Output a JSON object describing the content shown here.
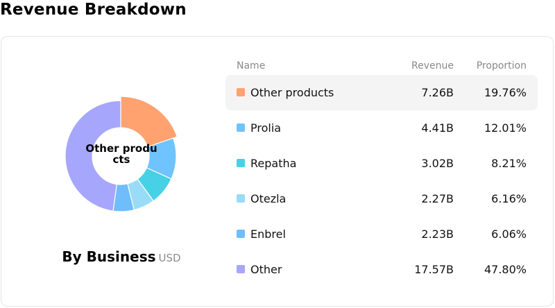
{
  "header": {
    "title": "Revenue Breakdown"
  },
  "donut": {
    "center_label": "Other products",
    "caption": "By Business",
    "unit": "USD"
  },
  "table": {
    "columns": {
      "name": "Name",
      "revenue": "Revenue",
      "proportion": "Proportion"
    }
  },
  "chart_data": {
    "type": "pie",
    "categories": [
      "Other products",
      "Prolia",
      "Repatha",
      "Otezla",
      "Enbrel",
      "Other"
    ],
    "values": [
      7.26,
      4.41,
      3.02,
      2.27,
      2.23,
      17.57
    ],
    "revenue_labels": [
      "7.26B",
      "4.41B",
      "3.02B",
      "2.27B",
      "2.23B",
      "17.57B"
    ],
    "proportions": [
      "19.76%",
      "12.01%",
      "8.21%",
      "6.16%",
      "6.06%",
      "47.80%"
    ],
    "colors": [
      "#ffa26f",
      "#6fc3ff",
      "#47d1e6",
      "#99dcf8",
      "#6fbdfa",
      "#a6a6fc"
    ],
    "highlighted": "Other products"
  }
}
